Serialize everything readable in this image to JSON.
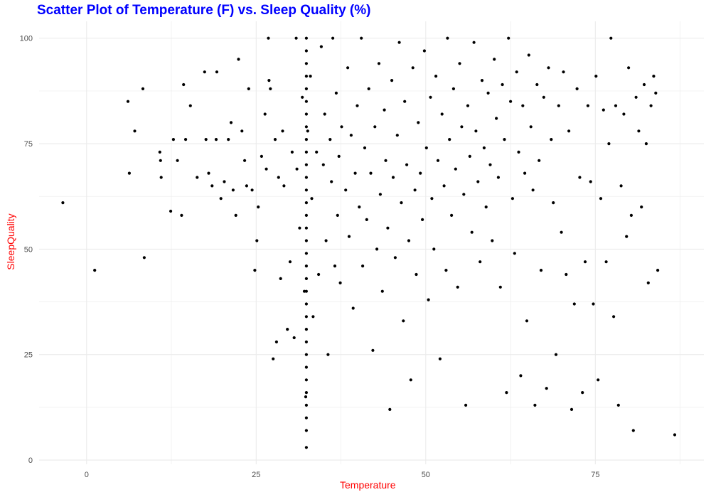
{
  "chart_data": {
    "type": "scatter",
    "title": "Scatter Plot of Temperature (F) vs. Sleep Quality (%)",
    "xlabel": "Temperature",
    "ylabel": "SleepQuality",
    "xlim": [
      -7,
      91
    ],
    "ylim": [
      -1,
      104
    ],
    "x_ticks": [
      0,
      25,
      50,
      75
    ],
    "x_tick_labels": [
      "0",
      "25",
      "50",
      "75"
    ],
    "y_ticks": [
      0,
      25,
      50,
      75,
      100
    ],
    "y_tick_labels": [
      "0",
      "25",
      "50",
      "75",
      "100"
    ],
    "grid": true,
    "legend": "none",
    "colors": {
      "title": "#0000ff",
      "axis_labels": "#ff0000",
      "points": "#000000",
      "grid": "#ebebeb"
    },
    "points": [
      [
        -3.5,
        61
      ],
      [
        1.2,
        45
      ],
      [
        6.1,
        85
      ],
      [
        6.3,
        68
      ],
      [
        7.1,
        78
      ],
      [
        8.3,
        88
      ],
      [
        8.5,
        48
      ],
      [
        10.8,
        73
      ],
      [
        10.9,
        71
      ],
      [
        11.0,
        67
      ],
      [
        12.4,
        59
      ],
      [
        12.8,
        76
      ],
      [
        13.4,
        71
      ],
      [
        14.0,
        58
      ],
      [
        14.3,
        89
      ],
      [
        14.6,
        76
      ],
      [
        15.3,
        84
      ],
      [
        16.3,
        67
      ],
      [
        17.4,
        92
      ],
      [
        17.6,
        76
      ],
      [
        18.0,
        68
      ],
      [
        18.5,
        65
      ],
      [
        19.1,
        76
      ],
      [
        19.2,
        92
      ],
      [
        19.8,
        62
      ],
      [
        20.3,
        66
      ],
      [
        20.9,
        76
      ],
      [
        21.3,
        80
      ],
      [
        21.6,
        64
      ],
      [
        22.0,
        58
      ],
      [
        22.4,
        95
      ],
      [
        22.9,
        78
      ],
      [
        23.3,
        71
      ],
      [
        23.6,
        65
      ],
      [
        23.9,
        88
      ],
      [
        24.4,
        64
      ],
      [
        24.8,
        45
      ],
      [
        25.1,
        52
      ],
      [
        25.3,
        60
      ],
      [
        25.8,
        72
      ],
      [
        26.3,
        82
      ],
      [
        26.5,
        69
      ],
      [
        26.8,
        100
      ],
      [
        26.9,
        90
      ],
      [
        27.1,
        88
      ],
      [
        27.5,
        24
      ],
      [
        27.8,
        76
      ],
      [
        28.0,
        28
      ],
      [
        28.3,
        67
      ],
      [
        28.6,
        43
      ],
      [
        28.9,
        78
      ],
      [
        29.1,
        65
      ],
      [
        29.6,
        31
      ],
      [
        30.0,
        47
      ],
      [
        30.3,
        73
      ],
      [
        30.6,
        29
      ],
      [
        30.9,
        100
      ],
      [
        31.0,
        69
      ],
      [
        31.4,
        55
      ],
      [
        31.8,
        86
      ],
      [
        32.1,
        40
      ],
      [
        32.3,
        15
      ],
      [
        32.6,
        78
      ],
      [
        33.0,
        91
      ],
      [
        33.2,
        62
      ],
      [
        33.4,
        34
      ],
      [
        33.9,
        73
      ],
      [
        34.2,
        44
      ],
      [
        34.6,
        98
      ],
      [
        34.9,
        70
      ],
      [
        35.1,
        82
      ],
      [
        35.3,
        52
      ],
      [
        35.6,
        25
      ],
      [
        35.9,
        76
      ],
      [
        36.1,
        66
      ],
      [
        36.3,
        100
      ],
      [
        36.6,
        46
      ],
      [
        36.8,
        87
      ],
      [
        37.0,
        58
      ],
      [
        37.2,
        72
      ],
      [
        37.4,
        42
      ],
      [
        37.6,
        79
      ],
      [
        38.2,
        64
      ],
      [
        38.5,
        93
      ],
      [
        38.7,
        53
      ],
      [
        39.0,
        77
      ],
      [
        39.3,
        36
      ],
      [
        39.6,
        68
      ],
      [
        39.9,
        84
      ],
      [
        40.2,
        60
      ],
      [
        40.5,
        100
      ],
      [
        40.7,
        46
      ],
      [
        41.0,
        74
      ],
      [
        41.3,
        57
      ],
      [
        41.6,
        88
      ],
      [
        41.9,
        68
      ],
      [
        42.2,
        26
      ],
      [
        42.5,
        79
      ],
      [
        42.8,
        50
      ],
      [
        43.1,
        94
      ],
      [
        43.3,
        63
      ],
      [
        43.6,
        40
      ],
      [
        43.9,
        83
      ],
      [
        44.1,
        71
      ],
      [
        44.4,
        55
      ],
      [
        44.7,
        12
      ],
      [
        45.0,
        90
      ],
      [
        45.2,
        67
      ],
      [
        45.5,
        48
      ],
      [
        45.8,
        77
      ],
      [
        46.1,
        99
      ],
      [
        46.4,
        61
      ],
      [
        46.7,
        33
      ],
      [
        46.9,
        85
      ],
      [
        47.2,
        70
      ],
      [
        47.5,
        52
      ],
      [
        47.8,
        19
      ],
      [
        48.1,
        93
      ],
      [
        48.4,
        64
      ],
      [
        48.6,
        44
      ],
      [
        48.9,
        80
      ],
      [
        49.2,
        68
      ],
      [
        49.5,
        57
      ],
      [
        49.8,
        97
      ],
      [
        50.1,
        74
      ],
      [
        50.4,
        38
      ],
      [
        50.7,
        86
      ],
      [
        50.9,
        62
      ],
      [
        51.2,
        50
      ],
      [
        51.5,
        91
      ],
      [
        51.8,
        71
      ],
      [
        52.1,
        24
      ],
      [
        52.4,
        82
      ],
      [
        52.7,
        65
      ],
      [
        53.0,
        45
      ],
      [
        53.2,
        100
      ],
      [
        53.5,
        76
      ],
      [
        53.8,
        58
      ],
      [
        54.1,
        88
      ],
      [
        54.4,
        69
      ],
      [
        54.7,
        41
      ],
      [
        55.0,
        94
      ],
      [
        55.3,
        79
      ],
      [
        55.6,
        63
      ],
      [
        55.9,
        13
      ],
      [
        56.2,
        84
      ],
      [
        56.5,
        72
      ],
      [
        56.8,
        54
      ],
      [
        57.1,
        99
      ],
      [
        57.4,
        78
      ],
      [
        57.7,
        66
      ],
      [
        58.0,
        47
      ],
      [
        58.3,
        90
      ],
      [
        58.6,
        74
      ],
      [
        58.9,
        60
      ],
      [
        59.2,
        87
      ],
      [
        59.5,
        70
      ],
      [
        59.8,
        52
      ],
      [
        60.1,
        95
      ],
      [
        60.4,
        81
      ],
      [
        60.7,
        67
      ],
      [
        61.0,
        41
      ],
      [
        61.3,
        89
      ],
      [
        61.6,
        76
      ],
      [
        61.9,
        16
      ],
      [
        62.2,
        100
      ],
      [
        62.5,
        85
      ],
      [
        62.8,
        62
      ],
      [
        63.1,
        49
      ],
      [
        63.4,
        92
      ],
      [
        63.7,
        73
      ],
      [
        64.0,
        20
      ],
      [
        64.3,
        84
      ],
      [
        64.6,
        68
      ],
      [
        64.9,
        33
      ],
      [
        65.2,
        96
      ],
      [
        65.5,
        79
      ],
      [
        65.8,
        64
      ],
      [
        66.1,
        13
      ],
      [
        66.4,
        89
      ],
      [
        66.7,
        71
      ],
      [
        67.0,
        45
      ],
      [
        67.4,
        86
      ],
      [
        67.8,
        17
      ],
      [
        68.1,
        93
      ],
      [
        68.5,
        76
      ],
      [
        68.8,
        61
      ],
      [
        69.2,
        25
      ],
      [
        69.6,
        84
      ],
      [
        70.0,
        54
      ],
      [
        70.3,
        92
      ],
      [
        70.7,
        44
      ],
      [
        71.1,
        78
      ],
      [
        71.5,
        12
      ],
      [
        71.9,
        37
      ],
      [
        72.3,
        88
      ],
      [
        72.7,
        67
      ],
      [
        73.1,
        16
      ],
      [
        73.5,
        47
      ],
      [
        73.9,
        84
      ],
      [
        74.3,
        66
      ],
      [
        74.7,
        37
      ],
      [
        75.1,
        91
      ],
      [
        75.4,
        19
      ],
      [
        75.8,
        62
      ],
      [
        76.2,
        83
      ],
      [
        76.6,
        47
      ],
      [
        77.0,
        75
      ],
      [
        77.3,
        100
      ],
      [
        77.7,
        34
      ],
      [
        78.0,
        84
      ],
      [
        78.4,
        13
      ],
      [
        78.8,
        65
      ],
      [
        79.2,
        82
      ],
      [
        79.6,
        53
      ],
      [
        79.9,
        93
      ],
      [
        80.3,
        58
      ],
      [
        80.6,
        7
      ],
      [
        81.0,
        86
      ],
      [
        81.4,
        78
      ],
      [
        81.8,
        60
      ],
      [
        82.2,
        89
      ],
      [
        82.5,
        75
      ],
      [
        82.8,
        42
      ],
      [
        83.2,
        84
      ],
      [
        83.6,
        91
      ],
      [
        83.9,
        87
      ],
      [
        84.2,
        45
      ],
      [
        86.7,
        6
      ],
      [
        32.4,
        100
      ],
      [
        32.4,
        97
      ],
      [
        32.4,
        94
      ],
      [
        32.4,
        91
      ],
      [
        32.4,
        88
      ],
      [
        32.4,
        85
      ],
      [
        32.4,
        82
      ],
      [
        32.4,
        79
      ],
      [
        32.4,
        76
      ],
      [
        32.4,
        73
      ],
      [
        32.4,
        70
      ],
      [
        32.4,
        67
      ],
      [
        32.4,
        64
      ],
      [
        32.4,
        61
      ],
      [
        32.4,
        58
      ],
      [
        32.4,
        55
      ],
      [
        32.4,
        52
      ],
      [
        32.4,
        49
      ],
      [
        32.4,
        46
      ],
      [
        32.4,
        43
      ],
      [
        32.4,
        40
      ],
      [
        32.4,
        37
      ],
      [
        32.4,
        34
      ],
      [
        32.4,
        31
      ],
      [
        32.4,
        28
      ],
      [
        32.4,
        25
      ],
      [
        32.4,
        22
      ],
      [
        32.4,
        19
      ],
      [
        32.4,
        16
      ],
      [
        32.4,
        13
      ],
      [
        32.4,
        10
      ],
      [
        32.4,
        7
      ],
      [
        32.4,
        3
      ]
    ]
  }
}
